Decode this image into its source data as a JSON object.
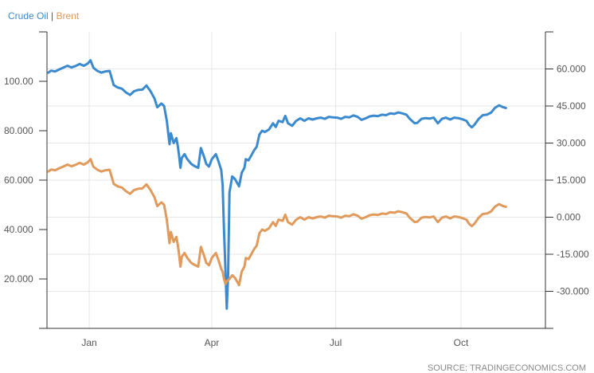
{
  "chart_data": {
    "type": "line",
    "legend": [
      "Crude Oil",
      "Brent"
    ],
    "left_axis": {
      "ylim": [
        0,
        120
      ],
      "ticks": [
        "100.00",
        "80.000",
        "60.000",
        "40.000",
        "20.000"
      ],
      "tick_values": [
        100,
        80,
        60,
        40,
        20
      ]
    },
    "right_axis": {
      "ylim": [
        -45,
        75
      ],
      "ticks": [
        "60.000",
        "45.000",
        "30.000",
        "15.000",
        "0.000",
        "-15.000",
        "-30.000"
      ],
      "tick_values": [
        60,
        45,
        30,
        15,
        0,
        -15,
        -30
      ]
    },
    "x_axis": {
      "xlim": [
        0,
        366
      ],
      "ticks": [
        "Jan",
        "Apr",
        "Jul",
        "Oct"
      ],
      "tick_days": [
        31,
        121,
        212,
        304
      ]
    },
    "grid": true,
    "series": [
      {
        "name": "Crude Oil",
        "axis": "left",
        "color": "#3b8ad0",
        "points": [
          [
            1,
            103.5
          ],
          [
            3,
            104.3
          ],
          [
            6,
            104
          ],
          [
            9,
            104.8
          ],
          [
            12,
            105.5
          ],
          [
            15,
            106.3
          ],
          [
            18,
            105.6
          ],
          [
            21,
            106.2
          ],
          [
            24,
            107
          ],
          [
            27,
            106.3
          ],
          [
            30,
            107.2
          ],
          [
            32,
            108.5
          ],
          [
            34,
            105.5
          ],
          [
            37,
            104.2
          ],
          [
            40,
            103.5
          ],
          [
            43,
            104
          ],
          [
            46,
            104.2
          ],
          [
            49,
            98.5
          ],
          [
            52,
            97.5
          ],
          [
            55,
            97
          ],
          [
            58,
            95.5
          ],
          [
            61,
            94.5
          ],
          [
            64,
            96
          ],
          [
            67,
            96.5
          ],
          [
            70,
            96.6
          ],
          [
            73,
            98.3
          ],
          [
            76,
            96
          ],
          [
            79,
            93
          ],
          [
            81,
            89.5
          ],
          [
            84,
            91
          ],
          [
            86,
            90
          ],
          [
            88,
            84
          ],
          [
            90,
            74.5
          ],
          [
            91,
            79
          ],
          [
            93,
            75
          ],
          [
            95,
            77
          ],
          [
            96,
            74
          ],
          [
            97,
            70
          ],
          [
            98,
            65
          ],
          [
            99,
            69
          ],
          [
            101,
            70.5
          ],
          [
            103,
            68.5
          ],
          [
            106,
            66.5
          ],
          [
            109,
            65.5
          ],
          [
            111,
            65
          ],
          [
            113,
            73
          ],
          [
            115,
            70
          ],
          [
            117,
            66.5
          ],
          [
            119,
            65.5
          ],
          [
            121,
            68.5
          ],
          [
            124,
            70.5
          ],
          [
            126,
            67.5
          ],
          [
            128,
            64
          ],
          [
            129,
            58
          ],
          [
            130,
            40
          ],
          [
            131,
            24
          ],
          [
            132,
            8
          ],
          [
            133,
            22
          ],
          [
            134,
            55
          ],
          [
            136,
            61.5
          ],
          [
            138,
            60.5
          ],
          [
            140,
            58.5
          ],
          [
            141,
            57.5
          ],
          [
            143,
            63
          ],
          [
            145,
            65
          ],
          [
            146,
            68.5
          ],
          [
            148,
            68
          ],
          [
            150,
            70
          ],
          [
            152,
            72
          ],
          [
            154,
            73.5
          ],
          [
            156,
            78.5
          ],
          [
            158,
            80
          ],
          [
            160,
            79.5
          ],
          [
            163,
            80.5
          ],
          [
            166,
            83
          ],
          [
            168,
            81.5
          ],
          [
            170,
            84
          ],
          [
            173,
            83.5
          ],
          [
            175,
            86
          ],
          [
            177,
            83
          ],
          [
            180,
            82
          ],
          [
            183,
            84
          ],
          [
            186,
            85
          ],
          [
            189,
            84
          ],
          [
            192,
            85
          ],
          [
            195,
            84.5
          ],
          [
            198,
            85
          ],
          [
            201,
            85.3
          ],
          [
            204,
            84.8
          ],
          [
            207,
            85.6
          ],
          [
            210,
            85.4
          ],
          [
            213,
            85.3
          ],
          [
            216,
            84.8
          ],
          [
            219,
            85.6
          ],
          [
            222,
            85.4
          ],
          [
            225,
            86.2
          ],
          [
            228,
            85.6
          ],
          [
            231,
            84.4
          ],
          [
            234,
            85
          ],
          [
            237,
            85.8
          ],
          [
            240,
            86.1
          ],
          [
            243,
            85.9
          ],
          [
            246,
            86.5
          ],
          [
            249,
            86.3
          ],
          [
            252,
            87
          ],
          [
            255,
            86.8
          ],
          [
            258,
            87.4
          ],
          [
            261,
            87
          ],
          [
            264,
            86.5
          ],
          [
            266,
            85
          ],
          [
            268,
            84
          ],
          [
            270,
            83
          ],
          [
            272,
            83.2
          ],
          [
            275,
            84.8
          ],
          [
            278,
            85.1
          ],
          [
            281,
            84.9
          ],
          [
            284,
            85.3
          ],
          [
            287,
            83
          ],
          [
            290,
            84.8
          ],
          [
            293,
            85.3
          ],
          [
            296,
            84.5
          ],
          [
            299,
            85.3
          ],
          [
            302,
            85.1
          ],
          [
            305,
            84.6
          ],
          [
            308,
            84
          ],
          [
            310,
            82.3
          ],
          [
            312,
            81.4
          ],
          [
            314,
            82.5
          ],
          [
            317,
            84.8
          ],
          [
            320,
            86.3
          ],
          [
            323,
            86.5
          ],
          [
            326,
            87.3
          ],
          [
            329,
            89.3
          ],
          [
            332,
            90.3
          ],
          [
            335,
            89.5
          ],
          [
            337,
            89.2
          ]
        ]
      },
      {
        "name": "Brent",
        "axis": "right",
        "color": "#e09a5c",
        "points": [
          [
            1,
            18.5
          ],
          [
            3,
            19.3
          ],
          [
            6,
            19
          ],
          [
            9,
            19.8
          ],
          [
            12,
            20.5
          ],
          [
            15,
            21.3
          ],
          [
            18,
            20.6
          ],
          [
            21,
            21.2
          ],
          [
            24,
            22
          ],
          [
            27,
            21.3
          ],
          [
            30,
            22.2
          ],
          [
            32,
            23.5
          ],
          [
            34,
            20.5
          ],
          [
            37,
            19.2
          ],
          [
            40,
            18.5
          ],
          [
            43,
            19
          ],
          [
            46,
            19.2
          ],
          [
            49,
            13.5
          ],
          [
            52,
            12.5
          ],
          [
            55,
            12
          ],
          [
            58,
            10.5
          ],
          [
            61,
            9.5
          ],
          [
            64,
            11
          ],
          [
            67,
            11.5
          ],
          [
            70,
            11.6
          ],
          [
            73,
            13.3
          ],
          [
            76,
            11
          ],
          [
            79,
            8
          ],
          [
            81,
            4.5
          ],
          [
            84,
            6
          ],
          [
            86,
            5
          ],
          [
            88,
            -1
          ],
          [
            90,
            -10.5
          ],
          [
            91,
            -6
          ],
          [
            93,
            -10
          ],
          [
            95,
            -8
          ],
          [
            96,
            -11
          ],
          [
            97,
            -15
          ],
          [
            98,
            -20
          ],
          [
            99,
            -16
          ],
          [
            101,
            -14.5
          ],
          [
            103,
            -16.5
          ],
          [
            106,
            -18.5
          ],
          [
            109,
            -19.5
          ],
          [
            111,
            -20
          ],
          [
            113,
            -12
          ],
          [
            115,
            -15
          ],
          [
            117,
            -18.5
          ],
          [
            119,
            -19.5
          ],
          [
            121,
            -16.5
          ],
          [
            124,
            -14.5
          ],
          [
            126,
            -17.5
          ],
          [
            128,
            -21
          ],
          [
            129,
            -22
          ],
          [
            130,
            -25
          ],
          [
            131,
            -27
          ],
          [
            132,
            -26
          ],
          [
            134,
            -25
          ],
          [
            136,
            -23.5
          ],
          [
            138,
            -24.5
          ],
          [
            140,
            -26.5
          ],
          [
            141,
            -27.5
          ],
          [
            143,
            -22
          ],
          [
            145,
            -20
          ],
          [
            146,
            -16.5
          ],
          [
            148,
            -17
          ],
          [
            150,
            -15
          ],
          [
            152,
            -13
          ],
          [
            154,
            -11.5
          ],
          [
            156,
            -6.5
          ],
          [
            158,
            -5
          ],
          [
            160,
            -5.5
          ],
          [
            163,
            -4.5
          ],
          [
            166,
            -2
          ],
          [
            168,
            -3.5
          ],
          [
            170,
            -1
          ],
          [
            173,
            -1.5
          ],
          [
            175,
            1
          ],
          [
            177,
            -2
          ],
          [
            180,
            -3
          ],
          [
            183,
            -1
          ],
          [
            186,
            0
          ],
          [
            189,
            -1
          ],
          [
            192,
            0
          ],
          [
            195,
            -0.5
          ],
          [
            198,
            0
          ],
          [
            201,
            0.3
          ],
          [
            204,
            -0.2
          ],
          [
            207,
            0.6
          ],
          [
            210,
            0.4
          ],
          [
            213,
            0.3
          ],
          [
            216,
            -0.2
          ],
          [
            219,
            0.6
          ],
          [
            222,
            0.4
          ],
          [
            225,
            1.2
          ],
          [
            228,
            0.6
          ],
          [
            231,
            -0.6
          ],
          [
            234,
            0
          ],
          [
            237,
            0.8
          ],
          [
            240,
            1.1
          ],
          [
            243,
            0.9
          ],
          [
            246,
            1.5
          ],
          [
            249,
            1.3
          ],
          [
            252,
            2
          ],
          [
            255,
            1.8
          ],
          [
            258,
            2.4
          ],
          [
            261,
            2
          ],
          [
            264,
            1.5
          ],
          [
            266,
            0
          ],
          [
            268,
            -1
          ],
          [
            270,
            -2
          ],
          [
            272,
            -1.8
          ],
          [
            275,
            -0.2
          ],
          [
            278,
            0.1
          ],
          [
            281,
            -0.1
          ],
          [
            284,
            0.3
          ],
          [
            287,
            -2
          ],
          [
            290,
            -0.2
          ],
          [
            293,
            0.3
          ],
          [
            296,
            -0.5
          ],
          [
            299,
            0.3
          ],
          [
            302,
            0.1
          ],
          [
            305,
            -0.4
          ],
          [
            308,
            -1
          ],
          [
            310,
            -2.7
          ],
          [
            312,
            -3.6
          ],
          [
            314,
            -2.5
          ],
          [
            317,
            -0.2
          ],
          [
            320,
            1.3
          ],
          [
            323,
            1.5
          ],
          [
            326,
            2.3
          ],
          [
            329,
            4.3
          ],
          [
            332,
            5.3
          ],
          [
            335,
            4.5
          ],
          [
            337,
            4.2
          ]
        ]
      }
    ]
  },
  "source_text": "SOURCE: TRADINGECONOMICS.COM"
}
